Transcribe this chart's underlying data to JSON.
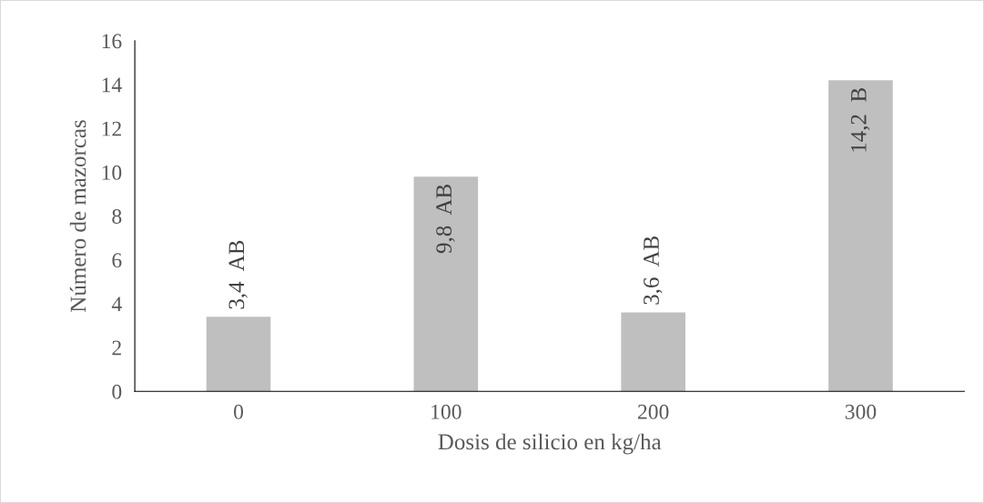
{
  "chart_data": {
    "type": "bar",
    "xlabel": "Dosis de silicio en kg/ha",
    "ylabel": "Número de mazorcas",
    "categories": [
      "0",
      "100",
      "200",
      "300"
    ],
    "values": [
      3.4,
      9.8,
      3.6,
      14.2
    ],
    "value_labels": [
      "3,4  AB",
      "9,8  AB",
      "3,6  AB",
      "14,2  B"
    ],
    "color": "#bfbfbf",
    "ylim": [
      0,
      16
    ],
    "yticks": [
      0,
      2,
      4,
      6,
      8,
      10,
      12,
      14,
      16
    ],
    "grid": false,
    "legend": false
  }
}
